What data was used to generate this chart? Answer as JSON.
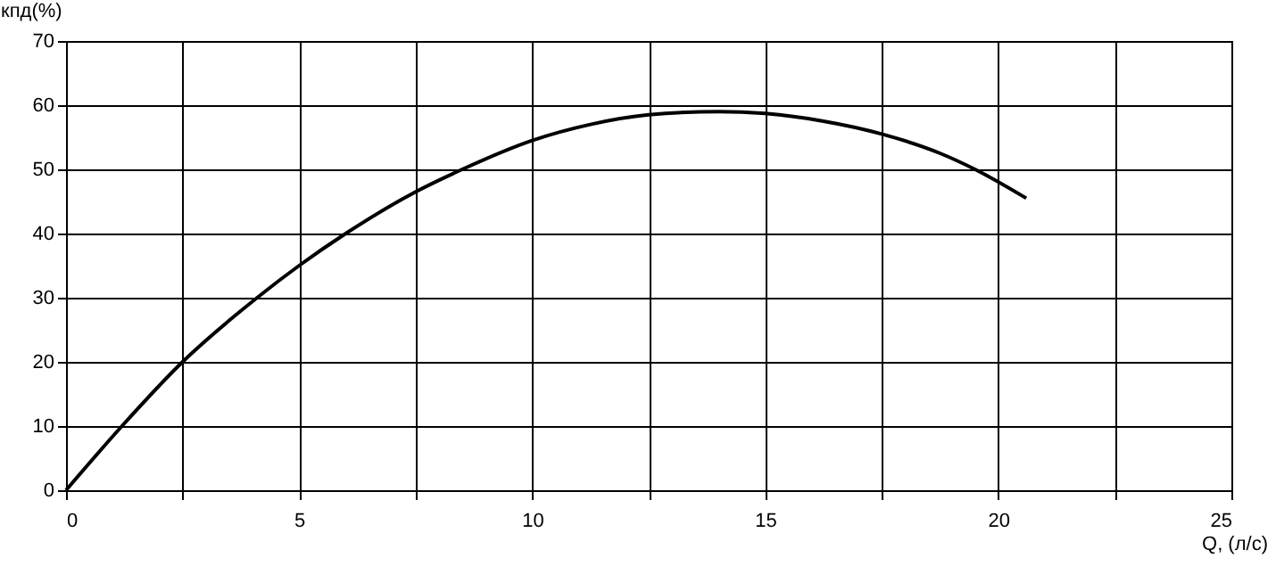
{
  "chart_data": {
    "type": "line",
    "xlabel": "Q, (л/с)",
    "ylabel": "кпд(%)",
    "x": [
      0,
      1.2,
      2.5,
      4.1,
      5,
      6,
      7.5,
      8.5,
      10,
      11.25,
      12.5,
      14,
      15,
      16.25,
      17.5,
      18.75,
      19.5,
      20.6
    ],
    "series": [
      {
        "color": "#000000",
        "values": [
          0,
          10,
          20,
          30,
          35,
          40,
          46.5,
          50,
          54.5,
          57,
          58.5,
          59,
          58.7,
          57.5,
          55.5,
          52.5,
          50,
          45.5
        ]
      }
    ],
    "xlim": [
      0,
      25
    ],
    "ylim": [
      0,
      70
    ],
    "xticks": [
      0,
      {
        "value": 2.5,
        "label": null
      },
      5,
      {
        "value": 7.5,
        "label": null
      },
      10,
      {
        "value": 12.5,
        "label": null
      },
      15,
      {
        "value": 17.5,
        "label": null
      },
      20,
      {
        "value": 22.5,
        "label": null
      },
      25
    ],
    "yticks": [
      0,
      10,
      20,
      30,
      40,
      50,
      60,
      70
    ],
    "grid": true,
    "marker": "none",
    "line_style": "solid"
  }
}
